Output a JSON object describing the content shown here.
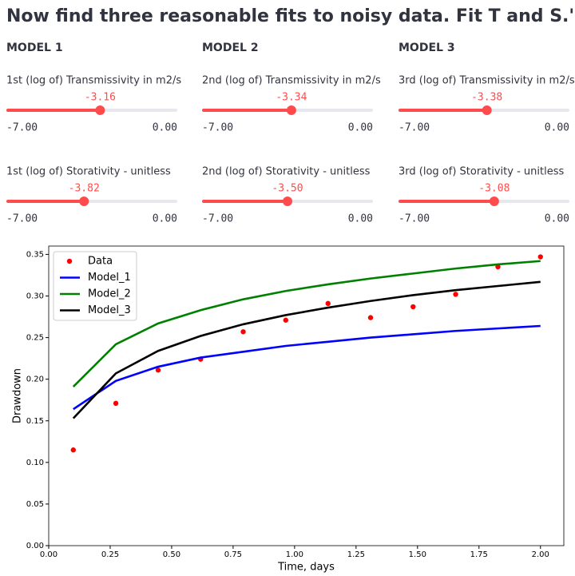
{
  "header": {
    "title": "Now find three reasonable fits to noisy data. Fit T and S.')"
  },
  "models": [
    {
      "heading": "MODEL 1",
      "sliders": [
        {
          "label": "1st (log of) Transmissivity in m2/s",
          "value": -3.16,
          "min": {
            "value": -7,
            "label": "-7.00"
          },
          "max": {
            "value": 0,
            "label": "0.00"
          }
        },
        {
          "label": "1st (log of) Storativity - unitless",
          "value": -3.82,
          "min": {
            "value": -7,
            "label": "-7.00"
          },
          "max": {
            "value": 0,
            "label": "0.00"
          }
        }
      ]
    },
    {
      "heading": "MODEL 2",
      "sliders": [
        {
          "label": "2nd (log of) Transmissivity in m2/s",
          "value": -3.34,
          "min": {
            "value": -7,
            "label": "-7.00"
          },
          "max": {
            "value": 0,
            "label": "0.00"
          }
        },
        {
          "label": "2nd (log of) Storativity - unitless",
          "value": {
            "value": -3.5,
            "label": "-3.50"
          },
          "min": {
            "value": -7,
            "label": "-7.00"
          },
          "max": {
            "value": 0,
            "label": "0.00"
          }
        }
      ]
    },
    {
      "heading": "MODEL 3",
      "sliders": [
        {
          "label": "3rd (log of) Transmissivity in m2/s",
          "value": -3.38,
          "min": {
            "value": -7,
            "label": "-7.00"
          },
          "max": {
            "value": 0,
            "label": "0.00"
          }
        },
        {
          "label": "3rd (log of) Storativity - unitless",
          "value": -3.08,
          "min": {
            "value": -7,
            "label": "-7.00"
          },
          "max": {
            "value": 0,
            "label": "0.00"
          }
        }
      ]
    }
  ],
  "chart_data": {
    "type": "line",
    "x_label": "Time, days",
    "y_label": "Drawdown",
    "x": [
      0.1,
      0.273,
      0.445,
      0.618,
      0.791,
      0.964,
      1.136,
      1.309,
      1.482,
      1.655,
      1.827,
      2.0
    ],
    "series": [
      {
        "name": "Data",
        "color": "#ff0000",
        "mark": "dot",
        "values": [
          0.115,
          0.171,
          0.211,
          0.224,
          0.257,
          0.271,
          0.291,
          0.274,
          0.287,
          0.302,
          0.335,
          0.347
        ]
      },
      {
        "name": "Model_1",
        "color": "#0000ff",
        "mark": "line",
        "values": [
          0.164,
          0.198,
          0.215,
          0.226,
          0.233,
          0.24,
          0.245,
          0.25,
          0.254,
          0.258,
          0.261,
          0.264
        ]
      },
      {
        "name": "Model_2",
        "color": "#008000",
        "mark": "line",
        "values": [
          0.191,
          0.242,
          0.267,
          0.283,
          0.296,
          0.306,
          0.314,
          0.321,
          0.327,
          0.333,
          0.338,
          0.342
        ]
      },
      {
        "name": "Model_3",
        "color": "#000000",
        "mark": "line",
        "values": [
          0.153,
          0.207,
          0.234,
          0.252,
          0.266,
          0.277,
          0.286,
          0.294,
          0.301,
          0.307,
          0.312,
          0.317
        ]
      }
    ],
    "xlim": [
      0,
      2.095
    ],
    "ylim": [
      0,
      0.36
    ],
    "xticks": [
      {
        "value": 0,
        "label": "0.00"
      },
      {
        "value": 0.25,
        "label": "0.25"
      },
      {
        "value": 0.5,
        "label": "0.50"
      },
      {
        "value": 0.75,
        "label": "0.75"
      },
      {
        "value": 1,
        "label": "1.00"
      },
      {
        "value": 1.25,
        "label": "1.25"
      },
      {
        "value": 1.5,
        "label": "1.50"
      },
      {
        "value": 1.75,
        "label": "1.75"
      },
      {
        "value": 2,
        "label": "2.00"
      }
    ],
    "yticks": [
      {
        "value": 0,
        "label": "0.00"
      },
      {
        "value": 0.05,
        "label": "0.05"
      },
      {
        "value": 0.1,
        "label": "0.10"
      },
      {
        "value": 0.15,
        "label": "0.15"
      },
      {
        "value": 0.2,
        "label": "0.20"
      },
      {
        "value": 0.25,
        "label": "0.25"
      },
      {
        "value": 0.3,
        "label": "0.30"
      },
      {
        "value": 0.35,
        "label": "0.35"
      }
    ],
    "legend": "upper left"
  }
}
